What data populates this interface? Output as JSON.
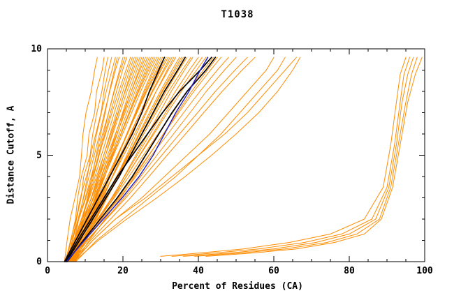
{
  "chart_data": {
    "type": "line",
    "title": "T1038",
    "xlabel": "Percent of Residues (CA)",
    "ylabel": "Distance Cutoff, A",
    "xlim": [
      0,
      100
    ],
    "ylim": [
      0,
      10
    ],
    "x_major_ticks": [
      0,
      20,
      40,
      60,
      80,
      100
    ],
    "x_minor_step": 5,
    "y_major_ticks": [
      0,
      5,
      10
    ],
    "y_minor_step": 1,
    "grid": false,
    "legend": "none",
    "colors": {
      "orange": "#ff8c00",
      "black": "#000000",
      "blue": "#2121c8"
    },
    "y_grid": [
      0,
      1,
      2,
      3,
      4,
      5,
      6,
      7,
      8,
      9,
      9.6
    ],
    "series": [
      {
        "color": "orange",
        "x": [
          4.5,
          5.2,
          6.0,
          7.3,
          8.5,
          9.0,
          9.4,
          10.2,
          11.6,
          12.5,
          13.2
        ]
      },
      {
        "color": "orange",
        "x": [
          5.0,
          6.2,
          7.4,
          8.0,
          9.0,
          10.5,
          11.0,
          12.5,
          13.0,
          14.5,
          15.0
        ]
      },
      {
        "color": "orange",
        "x": [
          5.5,
          6.6,
          7.7,
          8.9,
          9.6,
          11.3,
          12.0,
          13.1,
          14.4,
          15.3,
          16.0
        ]
      },
      {
        "color": "orange",
        "x": [
          6.0,
          7.1,
          8.3,
          9.5,
          10.6,
          11.4,
          12.8,
          14.2,
          15.0,
          16.2,
          17.0
        ]
      },
      {
        "color": "orange",
        "x": [
          4.8,
          6.1,
          7.6,
          8.7,
          10.3,
          12.0,
          13.0,
          14.3,
          15.6,
          17.1,
          18.0
        ]
      },
      {
        "color": "orange",
        "x": [
          5.2,
          6.6,
          8.1,
          9.6,
          11.0,
          12.4,
          13.8,
          15.1,
          16.5,
          18.0,
          19.0
        ]
      },
      {
        "color": "orange",
        "x": [
          6.9,
          8.1,
          9.3,
          10.6,
          11.8,
          12.9,
          14.1,
          15.3,
          16.4,
          17.7,
          18.5
        ]
      },
      {
        "color": "orange",
        "x": [
          6.5,
          7.9,
          9.3,
          10.8,
          12.2,
          13.5,
          14.9,
          16.2,
          17.6,
          19.1,
          20.0
        ]
      },
      {
        "color": "orange",
        "x": [
          5.1,
          6.6,
          8.3,
          10.0,
          11.6,
          13.1,
          14.6,
          16.2,
          17.7,
          19.4,
          20.5
        ]
      },
      {
        "color": "orange",
        "x": [
          5.8,
          7.3,
          9.0,
          10.7,
          12.2,
          13.7,
          15.2,
          16.7,
          18.3,
          19.9,
          21.0
        ]
      },
      {
        "color": "orange",
        "x": [
          4.6,
          6.3,
          8.3,
          10.2,
          11.9,
          13.6,
          15.4,
          17.1,
          18.9,
          20.8,
          22.0
        ]
      },
      {
        "color": "orange",
        "x": [
          5.4,
          7.1,
          9.0,
          10.9,
          12.6,
          14.3,
          16.0,
          17.7,
          19.4,
          21.3,
          22.5
        ]
      },
      {
        "color": "orange",
        "x": [
          6.2,
          7.9,
          9.7,
          11.6,
          13.3,
          14.9,
          16.6,
          18.3,
          20.0,
          21.8,
          23.0
        ]
      },
      {
        "color": "orange",
        "x": [
          6.7,
          8.4,
          10.2,
          12.1,
          13.8,
          15.4,
          17.1,
          18.8,
          20.5,
          22.3,
          23.5
        ]
      },
      {
        "color": "orange",
        "x": [
          5.0,
          6.9,
          9.0,
          11.1,
          13.0,
          14.9,
          16.8,
          18.7,
          20.6,
          22.7,
          24.0
        ]
      },
      {
        "color": "orange",
        "x": [
          5.6,
          7.5,
          9.6,
          11.6,
          13.5,
          15.4,
          17.3,
          19.2,
          21.1,
          23.2,
          24.5
        ]
      },
      {
        "color": "orange",
        "x": [
          6.8,
          8.6,
          10.6,
          12.6,
          14.4,
          16.3,
          18.1,
          19.9,
          21.7,
          23.7,
          25.0
        ]
      },
      {
        "color": "orange",
        "x": [
          7.0,
          8.9,
          10.9,
          12.9,
          14.8,
          16.6,
          18.5,
          20.3,
          22.2,
          24.2,
          25.5
        ]
      },
      {
        "color": "orange",
        "x": [
          4.9,
          7.0,
          9.3,
          11.7,
          13.8,
          15.9,
          18.0,
          20.1,
          22.2,
          24.5,
          26.0
        ]
      },
      {
        "color": "orange",
        "x": [
          5.3,
          7.4,
          9.8,
          12.1,
          14.2,
          16.3,
          18.4,
          20.6,
          22.7,
          25.0,
          26.5
        ]
      },
      {
        "color": "orange",
        "x": [
          6.0,
          8.1,
          10.4,
          12.7,
          14.8,
          16.9,
          19.0,
          21.1,
          23.2,
          25.5,
          27.0
        ]
      },
      {
        "color": "orange",
        "x": [
          6.3,
          8.4,
          10.8,
          13.1,
          15.2,
          17.3,
          19.4,
          21.6,
          23.7,
          26.0,
          27.5
        ]
      },
      {
        "color": "orange",
        "x": [
          5.7,
          7.9,
          10.4,
          12.8,
          15.1,
          17.3,
          19.5,
          21.8,
          24.0,
          26.4,
          28.0
        ]
      },
      {
        "color": "orange",
        "x": [
          4.7,
          7.1,
          9.7,
          12.3,
          14.7,
          17.1,
          19.5,
          21.8,
          24.2,
          26.8,
          28.5
        ]
      },
      {
        "color": "orange",
        "x": [
          5.1,
          7.5,
          10.1,
          12.7,
          15.1,
          17.5,
          19.9,
          22.3,
          24.7,
          27.3,
          29.0
        ]
      },
      {
        "color": "orange",
        "x": [
          7.2,
          9.4,
          11.9,
          14.3,
          16.6,
          18.8,
          21.0,
          23.3,
          25.5,
          27.9,
          29.5
        ]
      },
      {
        "color": "orange",
        "x": [
          6.4,
          8.8,
          11.4,
          14.0,
          16.3,
          18.7,
          21.0,
          23.4,
          25.8,
          28.3,
          30.0
        ]
      },
      {
        "color": "orange",
        "x": [
          5.9,
          8.4,
          11.1,
          13.8,
          16.2,
          18.7,
          21.2,
          23.6,
          26.1,
          28.8,
          30.5
        ]
      },
      {
        "color": "orange",
        "x": [
          5.0,
          7.6,
          10.5,
          13.3,
          15.9,
          18.5,
          21.1,
          23.7,
          26.3,
          29.2,
          31.0
        ]
      },
      {
        "color": "orange",
        "x": [
          6.9,
          9.4,
          12.1,
          14.8,
          17.2,
          19.7,
          22.1,
          24.6,
          27.1,
          29.8,
          31.5
        ]
      },
      {
        "color": "orange",
        "x": [
          5.5,
          8.2,
          11.1,
          14.0,
          16.6,
          19.3,
          21.9,
          24.6,
          27.2,
          30.1,
          32.0
        ]
      },
      {
        "color": "orange",
        "x": [
          6.1,
          8.7,
          11.6,
          14.5,
          17.2,
          19.8,
          22.5,
          25.1,
          27.7,
          30.7,
          32.5
        ]
      },
      {
        "color": "orange",
        "x": [
          4.8,
          7.6,
          10.7,
          13.8,
          16.6,
          19.5,
          22.3,
          25.1,
          27.9,
          31.0,
          33.0
        ]
      },
      {
        "color": "orange",
        "x": [
          7.4,
          10.0,
          12.9,
          15.8,
          18.4,
          21.0,
          23.6,
          26.2,
          28.8,
          31.7,
          33.5
        ]
      },
      {
        "color": "orange",
        "x": [
          5.2,
          8.1,
          11.2,
          14.4,
          17.3,
          20.2,
          23.1,
          25.9,
          28.8,
          32.0,
          34.0
        ]
      },
      {
        "color": "orange",
        "x": [
          6.6,
          9.4,
          12.6,
          15.7,
          18.5,
          21.4,
          24.2,
          27.0,
          29.9,
          33.0,
          35.0
        ]
      },
      {
        "color": "orange",
        "x": [
          6.6,
          9.5,
          12.7,
          15.8,
          18.7,
          21.6,
          24.5,
          27.4,
          30.3,
          33.5,
          35.5
        ]
      },
      {
        "color": "orange",
        "x": [
          5.4,
          8.5,
          11.8,
          15.2,
          18.3,
          21.3,
          24.4,
          27.4,
          30.5,
          33.9,
          36.0
        ]
      },
      {
        "color": "orange",
        "x": [
          5.8,
          8.9,
          12.4,
          15.8,
          18.9,
          22.0,
          25.1,
          28.3,
          31.4,
          34.8,
          37.0
        ]
      },
      {
        "color": "orange",
        "x": [
          5.0,
          8.3,
          11.9,
          15.6,
          18.9,
          22.2,
          25.5,
          28.8,
          32.1,
          35.7,
          38.0
        ]
      },
      {
        "color": "orange",
        "x": [
          7.1,
          10.2,
          13.7,
          17.1,
          20.3,
          23.4,
          26.6,
          29.7,
          32.8,
          36.3,
          38.5
        ]
      },
      {
        "color": "orange",
        "x": [
          6.2,
          9.6,
          13.3,
          17.0,
          20.4,
          23.8,
          27.2,
          30.5,
          33.9,
          37.6,
          40.0
        ]
      },
      {
        "color": "orange",
        "x": [
          6.4,
          9.9,
          13.7,
          17.5,
          20.9,
          24.4,
          27.9,
          31.3,
          34.8,
          38.6,
          41.0
        ]
      },
      {
        "color": "orange",
        "x": [
          5.6,
          9.2,
          13.2,
          17.2,
          20.9,
          24.5,
          28.2,
          31.8,
          35.5,
          39.5,
          42.0
        ]
      },
      {
        "color": "orange",
        "x": [
          5.3,
          9.2,
          13.4,
          17.7,
          21.6,
          25.4,
          29.3,
          33.2,
          37.0,
          41.3,
          44.0
        ]
      },
      {
        "color": "orange",
        "x": [
          7.3,
          11.1,
          15.2,
          19.4,
          23.1,
          26.9,
          30.7,
          34.4,
          38.2,
          42.4,
          45.0
        ]
      },
      {
        "color": "orange",
        "x": [
          6.0,
          10.0,
          14.4,
          18.8,
          22.8,
          26.8,
          30.8,
          34.8,
          38.8,
          43.2,
          46.0
        ]
      },
      {
        "color": "orange",
        "x": [
          5.5,
          9.8,
          14.4,
          19.1,
          23.4,
          27.6,
          31.9,
          36.1,
          40.4,
          45.0,
          48.0
        ]
      },
      {
        "color": "orange",
        "x": [
          6.3,
          10.7,
          15.5,
          20.3,
          24.7,
          29.0,
          33.4,
          37.8,
          42.1,
          46.9,
          50.0
        ]
      },
      {
        "color": "orange",
        "x": [
          5.7,
          10.4,
          15.6,
          20.8,
          25.6,
          30.3,
          35.0,
          39.8,
          44.5,
          49.7,
          53.0
        ]
      },
      {
        "color": "orange",
        "x": [
          6.5,
          11.4,
          16.7,
          22.0,
          26.9,
          31.7,
          36.6,
          41.4,
          46.3,
          51.6,
          55.0
        ]
      },
      {
        "color": "orange",
        "x": [
          7.0,
          12.0,
          18.0,
          25.0,
          31.0,
          37.0,
          43.0,
          48.0,
          53.0,
          58.0,
          60.0
        ]
      },
      {
        "color": "orange",
        "x": [
          7.5,
          13.0,
          20.0,
          27.0,
          34.0,
          40.0,
          46.0,
          51.0,
          56.0,
          61.0,
          63.0
        ]
      },
      {
        "color": "orange",
        "x": [
          6.8,
          12.0,
          18.0,
          26.0,
          33.0,
          40.0,
          47.0,
          53.0,
          58.0,
          63.0,
          66.0
        ]
      },
      {
        "color": "orange",
        "x": [
          7.0,
          13.5,
          21.0,
          29.0,
          36.5,
          43.5,
          50.0,
          56.0,
          61.0,
          65.0,
          67.0
        ]
      },
      {
        "color": "orange",
        "y": [
          0.25,
          0.4,
          0.6,
          0.9,
          1.3,
          2.0,
          3.5,
          5.5,
          7.5,
          8.8,
          9.6
        ],
        "x": [
          30.0,
          40.0,
          52.0,
          64.0,
          75.0,
          84.0,
          89.0,
          91.0,
          92.5,
          93.5,
          95.0
        ]
      },
      {
        "color": "orange",
        "y": [
          0.25,
          0.4,
          0.6,
          0.9,
          1.3,
          2.0,
          3.5,
          5.5,
          7.5,
          8.8,
          9.6
        ],
        "x": [
          33.0,
          44.0,
          56.0,
          68.0,
          78.0,
          86.0,
          90.0,
          92.0,
          93.5,
          94.5,
          96.0
        ]
      },
      {
        "color": "orange",
        "y": [
          0.25,
          0.4,
          0.6,
          0.9,
          1.3,
          2.0,
          3.5,
          5.5,
          7.5,
          8.8,
          9.6
        ],
        "x": [
          36.0,
          48.0,
          60.0,
          71.0,
          80.0,
          87.0,
          90.5,
          92.5,
          94.0,
          95.5,
          97.0
        ]
      },
      {
        "color": "orange",
        "y": [
          0.25,
          0.4,
          0.6,
          0.9,
          1.3,
          2.0,
          3.5,
          5.5,
          7.5,
          8.8,
          9.6
        ],
        "x": [
          39.0,
          51.0,
          63.0,
          74.0,
          82.0,
          88.0,
          91.0,
          93.0,
          95.0,
          96.5,
          98.0
        ]
      },
      {
        "color": "orange",
        "y": [
          0.25,
          0.4,
          0.6,
          0.9,
          1.3,
          2.0,
          3.5,
          5.5,
          7.5,
          8.8,
          9.6
        ],
        "x": [
          42.0,
          54.0,
          66.0,
          76.0,
          84.0,
          88.5,
          91.5,
          93.5,
          95.5,
          97.5,
          99.3
        ]
      },
      {
        "color": "black",
        "x": [
          4.5,
          7.5,
          10.5,
          13.5,
          16.5,
          19.5,
          22.5,
          25.0,
          27.0,
          29.5,
          31.0
        ]
      },
      {
        "color": "black",
        "x": [
          5.0,
          8.5,
          12.0,
          15.5,
          19.0,
          22.0,
          25.0,
          28.0,
          31.0,
          34.5,
          36.5
        ]
      },
      {
        "color": "black",
        "x": [
          4.8,
          8.0,
          11.5,
          15.0,
          18.5,
          22.5,
          26.5,
          30.5,
          35.0,
          40.5,
          43.5
        ]
      },
      {
        "color": "black",
        "x": [
          5.2,
          9.5,
          14.0,
          18.5,
          22.5,
          26.0,
          29.5,
          33.0,
          37.0,
          42.0,
          44.5
        ]
      },
      {
        "color": "blue",
        "x": [
          5.0,
          9.8,
          14.8,
          19.8,
          24.3,
          28.0,
          31.0,
          34.0,
          37.5,
          40.5,
          42.5
        ]
      }
    ]
  }
}
